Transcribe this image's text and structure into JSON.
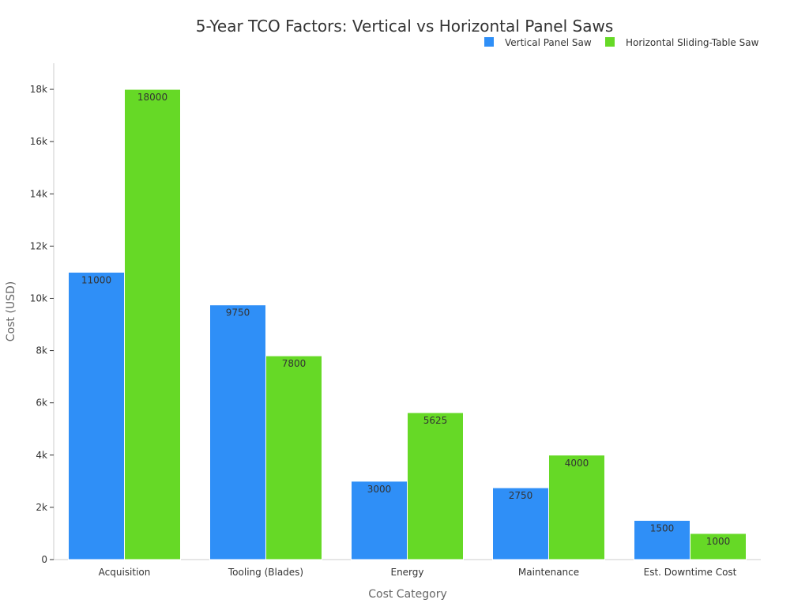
{
  "chart_data": {
    "type": "bar",
    "title": "5-Year TCO Factors: Vertical vs Horizontal Panel Saws",
    "xlabel": "Cost Category",
    "ylabel": "Cost (USD)",
    "categories": [
      "Acquisition",
      "Tooling (Blades)",
      "Energy",
      "Maintenance",
      "Est. Downtime Cost"
    ],
    "series": [
      {
        "name": "Vertical Panel Saw",
        "color": "#2f8ff7",
        "values": [
          11000,
          9750,
          3000,
          2750,
          1500
        ],
        "labels": [
          "11000",
          "9750",
          "3000",
          "2750",
          "1500"
        ]
      },
      {
        "name": "Horizontal Sliding-Table Saw",
        "color": "#66d926",
        "values": [
          18000,
          7800,
          5625,
          4000,
          1000
        ],
        "labels": [
          "18000",
          "7800",
          "5625",
          "4000",
          "1000"
        ]
      }
    ],
    "ylim": [
      0,
      19000
    ],
    "yticks": [
      0,
      2000,
      4000,
      6000,
      8000,
      10000,
      12000,
      14000,
      16000,
      18000
    ],
    "ytick_labels": [
      "0",
      "2k",
      "4k",
      "6k",
      "8k",
      "10k",
      "12k",
      "14k",
      "16k",
      "18k"
    ],
    "legend_position": "top-right",
    "grid": false
  }
}
